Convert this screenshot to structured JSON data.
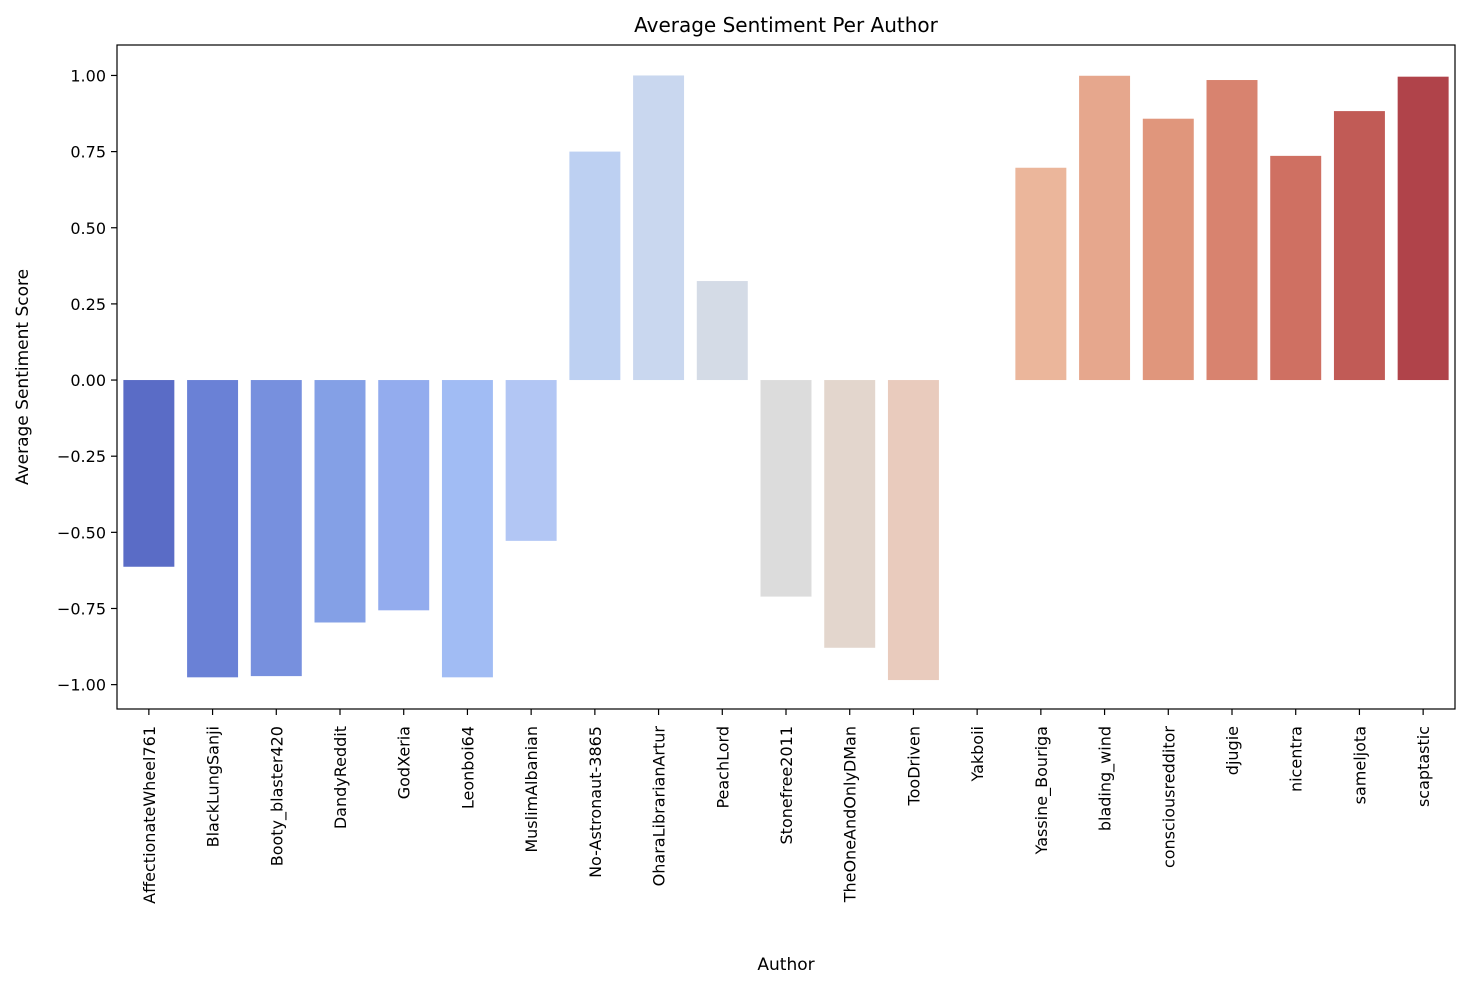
{
  "chart_data": {
    "type": "bar",
    "title": "Average Sentiment Per Author",
    "xlabel": "Author",
    "ylabel": "Average Sentiment Score",
    "ylim": [
      -1.08,
      1.1
    ],
    "yticks": [
      1.0,
      0.75,
      0.5,
      0.25,
      0.0,
      -0.25,
      -0.5,
      -0.75,
      -1.0
    ],
    "ytick_labels": [
      "1.00",
      "0.75",
      "0.50",
      "0.25",
      "0.00",
      "−0.25",
      "−0.50",
      "−0.75",
      "−1.00"
    ],
    "grid": false,
    "categories": [
      "AffectionateWheel761",
      "BlackLungSanji",
      "Booty_blaster420",
      "DandyReddit",
      "GodXeria",
      "Leonboi64",
      "MuslimAlbanian",
      "No-Astronaut-3865",
      "OharaLibrarianArtur",
      "PeachLord",
      "Stonefree2011",
      "TheOneAndOnlyDMan",
      "TooDriven",
      "Yakboii",
      "Yassine_Bouriga",
      "blading_wind",
      "consciousredditor",
      "djugie",
      "nicentra",
      "sameljota",
      "scaptastic"
    ],
    "values": [
      -0.613,
      -0.976,
      -0.972,
      -0.796,
      -0.756,
      -0.976,
      -0.528,
      0.75,
      1.0,
      0.325,
      -0.711,
      -0.879,
      -0.985,
      0.0,
      0.697,
      0.999,
      0.858,
      0.985,
      0.736,
      0.883,
      0.996
    ],
    "colors": [
      "#5a6cc6",
      "#6a81d6",
      "#7790de",
      "#84a0e6",
      "#93acee",
      "#a1bcf4",
      "#b2c6f4",
      "#bdd0f2",
      "#c9d7ef",
      "#d4dbe6",
      "#dcdcdc",
      "#e3d6cd",
      "#e9cbbd",
      "#ecc1ab",
      "#ebb69b",
      "#e6a78d",
      "#e0967c",
      "#d8836f",
      "#cf7062",
      "#c15b56",
      "#b0434a"
    ]
  }
}
